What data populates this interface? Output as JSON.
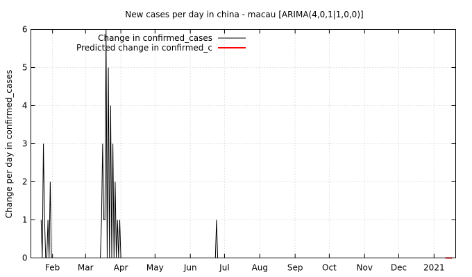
{
  "chart_data": {
    "type": "line",
    "title": "New cases per day in china - macau [ARIMA(4,0,1|1,0,0)]",
    "xlabel": "",
    "ylabel": "Change per day in confirmed_cases",
    "x_range": [
      "2020-01-13",
      "2021-01-20"
    ],
    "ylim": [
      0,
      6
    ],
    "y_ticks": [
      "0",
      "1",
      "2",
      "3",
      "4",
      "5",
      "6"
    ],
    "x_ticks": [
      {
        "label": "Feb",
        "date": "2020-02-01"
      },
      {
        "label": "Mar",
        "date": "2020-03-01"
      },
      {
        "label": "Apr",
        "date": "2020-04-01"
      },
      {
        "label": "May",
        "date": "2020-05-01"
      },
      {
        "label": "Jun",
        "date": "2020-06-01"
      },
      {
        "label": "Jul",
        "date": "2020-07-01"
      },
      {
        "label": "Aug",
        "date": "2020-08-01"
      },
      {
        "label": "Sep",
        "date": "2020-09-01"
      },
      {
        "label": "Oct",
        "date": "2020-10-01"
      },
      {
        "label": "Nov",
        "date": "2020-11-01"
      },
      {
        "label": "Dec",
        "date": "2020-12-01"
      },
      {
        "label": "2021",
        "date": "2021-01-01"
      }
    ],
    "grid": true,
    "legend_position": "top-left",
    "series": [
      {
        "name": "Change in confirmed_cases",
        "color": "#000000",
        "points": [
          [
            "2020-01-22",
            1
          ],
          [
            "2020-01-23",
            0
          ],
          [
            "2020-01-24",
            3
          ],
          [
            "2020-01-25",
            1
          ],
          [
            "2020-01-26",
            0
          ],
          [
            "2020-01-27",
            0
          ],
          [
            "2020-01-28",
            1
          ],
          [
            "2020-01-29",
            0
          ],
          [
            "2020-01-30",
            2
          ],
          [
            "2020-01-31",
            0
          ],
          [
            "2020-02-01",
            0
          ],
          [
            "2020-02-05",
            0
          ],
          [
            "2020-03-14",
            0
          ],
          [
            "2020-03-15",
            1
          ],
          [
            "2020-03-16",
            3
          ],
          [
            "2020-03-17",
            1
          ],
          [
            "2020-03-18",
            1
          ],
          [
            "2020-03-19",
            6
          ],
          [
            "2020-03-20",
            0
          ],
          [
            "2020-03-21",
            5
          ],
          [
            "2020-03-22",
            0
          ],
          [
            "2020-03-23",
            4
          ],
          [
            "2020-03-24",
            0
          ],
          [
            "2020-03-25",
            3
          ],
          [
            "2020-03-26",
            0
          ],
          [
            "2020-03-27",
            2
          ],
          [
            "2020-03-28",
            0
          ],
          [
            "2020-03-29",
            1
          ],
          [
            "2020-03-30",
            0
          ],
          [
            "2020-03-31",
            1
          ],
          [
            "2020-04-01",
            0
          ],
          [
            "2020-04-10",
            0
          ],
          [
            "2020-06-23",
            0
          ],
          [
            "2020-06-24",
            1
          ],
          [
            "2020-06-25",
            0
          ],
          [
            "2021-01-10",
            0
          ]
        ]
      },
      {
        "name": "Predicted change in confirmed_c",
        "color": "#ff0000",
        "points": [
          [
            "2021-01-11",
            0
          ],
          [
            "2021-01-17",
            0
          ]
        ]
      }
    ]
  }
}
